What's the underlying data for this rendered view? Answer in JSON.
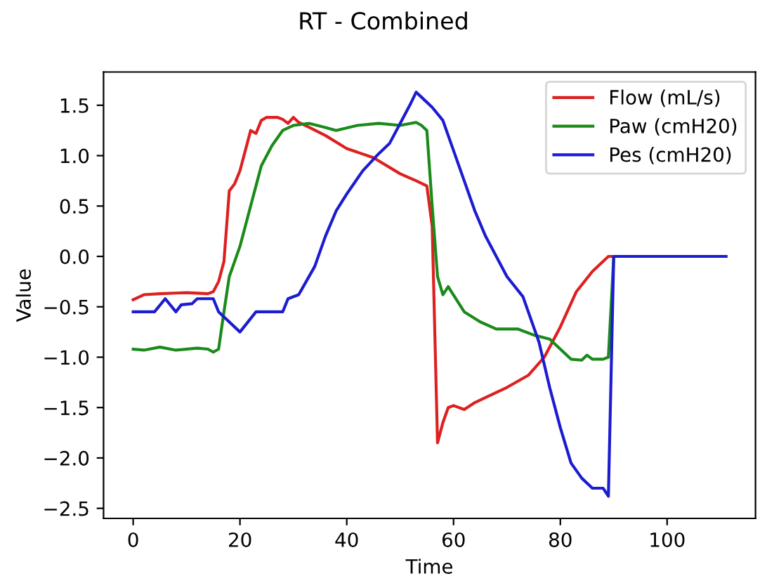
{
  "chart_data": {
    "type": "line",
    "title": "RT - Combined",
    "xlabel": "Time",
    "ylabel": "Value",
    "xlim": [
      -5.55,
      116.55
    ],
    "ylim": [
      -2.6,
      1.83
    ],
    "xticks": [
      0,
      20,
      40,
      60,
      80,
      100
    ],
    "yticks": [
      {
        "value": -2.5,
        "label": "−2.5"
      },
      {
        "value": -2.0,
        "label": "−2.0"
      },
      {
        "value": -1.5,
        "label": "−1.5"
      },
      {
        "value": -1.0,
        "label": "−1.0"
      },
      {
        "value": -0.5,
        "label": "−0.5"
      },
      {
        "value": 0.0,
        "label": "0.0"
      },
      {
        "value": 0.5,
        "label": "0.5"
      },
      {
        "value": 1.0,
        "label": "1.0"
      },
      {
        "value": 1.5,
        "label": "1.5"
      }
    ],
    "grid": false,
    "legend": "top right",
    "series": [
      {
        "name": "Flow (mL/s)",
        "color": "#dd2020",
        "x": [
          0,
          2,
          5,
          10,
          14,
          15,
          16,
          17,
          18,
          19,
          20,
          21,
          22,
          23,
          24,
          25,
          27,
          28,
          29,
          30,
          31,
          33,
          36,
          40,
          45,
          50,
          53,
          55,
          56,
          57,
          58,
          59,
          60,
          62,
          64,
          66,
          70,
          74,
          77,
          80,
          83,
          86,
          89,
          90,
          111
        ],
        "values": [
          -0.43,
          -0.38,
          -0.37,
          -0.36,
          -0.37,
          -0.35,
          -0.25,
          -0.05,
          0.65,
          0.72,
          0.85,
          1.05,
          1.25,
          1.22,
          1.35,
          1.38,
          1.38,
          1.36,
          1.32,
          1.38,
          1.33,
          1.28,
          1.2,
          1.07,
          0.98,
          0.82,
          0.75,
          0.7,
          0.3,
          -1.85,
          -1.65,
          -1.5,
          -1.48,
          -1.52,
          -1.45,
          -1.4,
          -1.3,
          -1.18,
          -1.0,
          -0.7,
          -0.35,
          -0.15,
          0.0,
          0.0,
          0.0
        ]
      },
      {
        "name": "Paw (cmH20)",
        "color": "#1a8a1a",
        "x": [
          0,
          2,
          5,
          8,
          12,
          14,
          15,
          16,
          17,
          18,
          20,
          22,
          24,
          26,
          28,
          30,
          33,
          36,
          38,
          42,
          46,
          50,
          53,
          54,
          55,
          56,
          57,
          58,
          59,
          62,
          65,
          68,
          72,
          75,
          78,
          80,
          82,
          84,
          85,
          86,
          88,
          89,
          90,
          111
        ],
        "values": [
          -0.92,
          -0.93,
          -0.9,
          -0.93,
          -0.91,
          -0.92,
          -0.95,
          -0.92,
          -0.55,
          -0.2,
          0.1,
          0.5,
          0.9,
          1.1,
          1.25,
          1.3,
          1.32,
          1.28,
          1.25,
          1.3,
          1.32,
          1.3,
          1.33,
          1.3,
          1.25,
          0.5,
          -0.2,
          -0.38,
          -0.3,
          -0.55,
          -0.65,
          -0.72,
          -0.72,
          -0.78,
          -0.82,
          -0.92,
          -1.02,
          -1.03,
          -0.98,
          -1.02,
          -1.02,
          -1.0,
          0.0,
          0.0
        ]
      },
      {
        "name": "Pes (cmH20)",
        "color": "#1c1cd0",
        "x": [
          0,
          4,
          6,
          8,
          9,
          11,
          12,
          15,
          16,
          20,
          23,
          28,
          29,
          31,
          34,
          36,
          38,
          40,
          43,
          46,
          48,
          50,
          52,
          53,
          54,
          56,
          58,
          60,
          62,
          64,
          66,
          68,
          70,
          73,
          74,
          76,
          78,
          80,
          82,
          84,
          86,
          88,
          89,
          90,
          111
        ],
        "values": [
          -0.55,
          -0.55,
          -0.42,
          -0.55,
          -0.48,
          -0.47,
          -0.42,
          -0.42,
          -0.55,
          -0.75,
          -0.55,
          -0.55,
          -0.42,
          -0.38,
          -0.1,
          0.2,
          0.45,
          0.62,
          0.85,
          1.02,
          1.12,
          1.32,
          1.52,
          1.63,
          1.58,
          1.48,
          1.35,
          1.05,
          0.75,
          0.45,
          0.2,
          0.0,
          -0.2,
          -0.4,
          -0.55,
          -0.85,
          -1.3,
          -1.7,
          -2.05,
          -2.2,
          -2.3,
          -2.3,
          -2.38,
          0.0,
          0.0
        ]
      }
    ]
  }
}
